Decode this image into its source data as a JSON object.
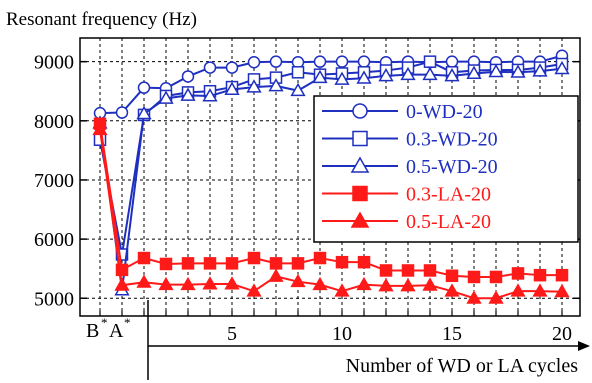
{
  "chart_data": {
    "type": "line",
    "title": "",
    "ylabel": "Resonant frequency (Hz)",
    "xlabel": "Number of WD or LA cycles",
    "ylim": [
      4700,
      9400
    ],
    "yticks": [
      5000,
      6000,
      7000,
      8000,
      9000
    ],
    "x_categories": [
      "B*",
      "A*",
      "1",
      "2",
      "3",
      "4",
      "5",
      "6",
      "7",
      "8",
      "9",
      "10",
      "11",
      "12",
      "13",
      "14",
      "15",
      "16",
      "17",
      "18",
      "19",
      "20"
    ],
    "x_tick_labels": [
      "5",
      "10",
      "15",
      "20"
    ],
    "x_tick_positions": [
      "5",
      "10",
      "15",
      "20"
    ],
    "pre_labels": {
      "b": "B",
      "a": "A",
      "star": "*"
    },
    "grid": true,
    "legend_position": "right",
    "series": [
      {
        "name": "0-WD-20",
        "color": "#1f2fbf",
        "marker": "circle-open",
        "values": [
          8130,
          8140,
          8560,
          8550,
          8750,
          8900,
          8900,
          8990,
          9000,
          8990,
          9000,
          9000,
          9000,
          8990,
          9000,
          8990,
          9000,
          9000,
          8990,
          9000,
          9000,
          9100
        ]
      },
      {
        "name": "0.3-WD-20",
        "color": "#1f2fbf",
        "marker": "square-open",
        "values": [
          7680,
          5740,
          8100,
          8420,
          8480,
          8500,
          8570,
          8700,
          8730,
          8820,
          8780,
          8800,
          8820,
          8850,
          8900,
          9000,
          8820,
          8850,
          8860,
          8860,
          8900,
          8960
        ]
      },
      {
        "name": "0.5-WD-20",
        "color": "#1f2fbf",
        "marker": "triangle-open",
        "values": [
          7960,
          5140,
          8120,
          8380,
          8430,
          8420,
          8530,
          8570,
          8590,
          8510,
          8730,
          8700,
          8720,
          8760,
          8780,
          8780,
          8760,
          8800,
          8830,
          8820,
          8840,
          8880
        ]
      },
      {
        "name": "0.3-LA-20",
        "color": "#ff1a1a",
        "marker": "square-filled",
        "values": [
          7950,
          5480,
          5680,
          5580,
          5590,
          5590,
          5590,
          5680,
          5590,
          5590,
          5680,
          5610,
          5610,
          5470,
          5470,
          5470,
          5380,
          5360,
          5360,
          5420,
          5390,
          5390
        ]
      },
      {
        "name": "0.5-LA-20",
        "color": "#ff1a1a",
        "marker": "triangle-filled",
        "values": [
          7850,
          5220,
          5270,
          5230,
          5230,
          5240,
          5240,
          5120,
          5370,
          5280,
          5230,
          5120,
          5230,
          5210,
          5210,
          5220,
          5120,
          5000,
          5000,
          5120,
          5120,
          5110
        ]
      }
    ]
  }
}
